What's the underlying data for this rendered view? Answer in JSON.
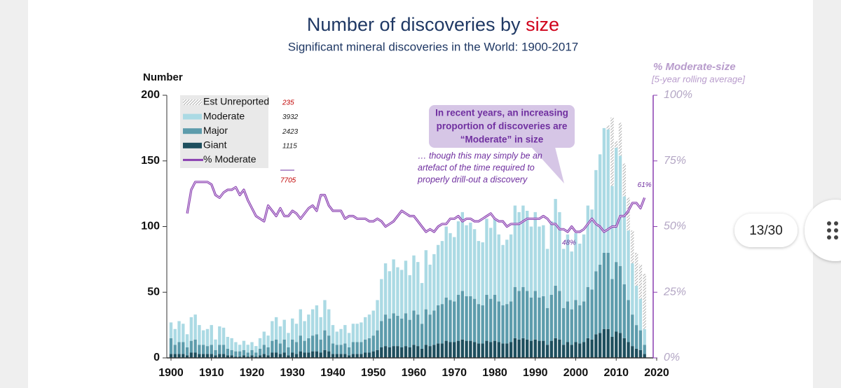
{
  "chart_data": {
    "type": "bar",
    "stacked": true,
    "title": "Number of discoveries by",
    "title_highlight": "size",
    "subtitle": "Significant mineral discoveries in the World: 1900-2017",
    "y_label": "Number",
    "y2_label": "% Moderate-size",
    "y2_sublabel": "[5-year rolling average]",
    "x": [
      1900,
      1901,
      1902,
      1903,
      1904,
      1905,
      1906,
      1907,
      1908,
      1909,
      1910,
      1911,
      1912,
      1913,
      1914,
      1915,
      1916,
      1917,
      1918,
      1919,
      1920,
      1921,
      1922,
      1923,
      1924,
      1925,
      1926,
      1927,
      1928,
      1929,
      1930,
      1931,
      1932,
      1933,
      1934,
      1935,
      1936,
      1937,
      1938,
      1939,
      1940,
      1941,
      1942,
      1943,
      1944,
      1945,
      1946,
      1947,
      1948,
      1949,
      1950,
      1951,
      1952,
      1953,
      1954,
      1955,
      1956,
      1957,
      1958,
      1959,
      1960,
      1961,
      1962,
      1963,
      1964,
      1965,
      1966,
      1967,
      1968,
      1969,
      1970,
      1971,
      1972,
      1973,
      1974,
      1975,
      1976,
      1977,
      1978,
      1979,
      1980,
      1981,
      1982,
      1983,
      1984,
      1985,
      1986,
      1987,
      1988,
      1989,
      1990,
      1991,
      1992,
      1993,
      1994,
      1995,
      1996,
      1997,
      1998,
      1999,
      2000,
      2001,
      2002,
      2003,
      2004,
      2005,
      2006,
      2007,
      2008,
      2009,
      2010,
      2011,
      2012,
      2013,
      2014,
      2015,
      2016,
      2017
    ],
    "series": [
      {
        "name": "Giant",
        "color": "#1e4f5e",
        "total": "1115",
        "values": [
          3,
          3,
          3,
          3,
          2,
          4,
          4,
          3,
          3,
          3,
          3,
          2,
          3,
          3,
          2,
          2,
          1,
          1,
          2,
          1,
          2,
          1,
          2,
          3,
          2,
          4,
          4,
          3,
          4,
          2,
          4,
          3,
          5,
          4,
          4,
          5,
          5,
          4,
          6,
          5,
          3,
          3,
          3,
          3,
          2,
          3,
          3,
          3,
          4,
          4,
          5,
          6,
          8,
          9,
          8,
          9,
          9,
          8,
          9,
          8,
          10,
          9,
          7,
          10,
          9,
          10,
          11,
          11,
          13,
          12,
          12,
          13,
          14,
          13,
          13,
          12,
          11,
          11,
          13,
          12,
          13,
          12,
          11,
          11,
          12,
          15,
          14,
          15,
          14,
          13,
          14,
          13,
          13,
          10,
          13,
          15,
          14,
          10,
          12,
          10,
          12,
          11,
          12,
          15,
          14,
          18,
          19,
          22,
          22,
          16,
          20,
          19,
          15,
          12,
          9,
          7,
          6,
          3
        ]
      },
      {
        "name": "Major",
        "color": "#5d9cac",
        "total": "2423",
        "values": [
          12,
          7,
          9,
          9,
          6,
          9,
          10,
          7,
          7,
          6,
          7,
          4,
          7,
          7,
          5,
          4,
          4,
          4,
          4,
          3,
          4,
          3,
          5,
          7,
          6,
          9,
          10,
          8,
          10,
          6,
          10,
          9,
          12,
          9,
          11,
          12,
          13,
          10,
          15,
          12,
          8,
          7,
          7,
          8,
          6,
          9,
          9,
          9,
          10,
          11,
          12,
          15,
          20,
          24,
          22,
          25,
          23,
          22,
          25,
          21,
          26,
          24,
          19,
          27,
          24,
          26,
          29,
          30,
          33,
          32,
          31,
          35,
          37,
          34,
          34,
          33,
          30,
          29,
          35,
          33,
          35,
          31,
          29,
          30,
          31,
          39,
          37,
          39,
          37,
          33,
          37,
          33,
          34,
          28,
          35,
          40,
          37,
          28,
          31,
          27,
          32,
          29,
          31,
          39,
          38,
          48,
          52,
          58,
          58,
          44,
          53,
          51,
          41,
          32,
          24,
          18,
          15,
          7
        ]
      },
      {
        "name": "Moderate",
        "color": "#abdae4",
        "total": "3932",
        "values": [
          12,
          12,
          16,
          14,
          10,
          18,
          19,
          15,
          11,
          13,
          15,
          8,
          14,
          13,
          9,
          9,
          7,
          5,
          7,
          6,
          6,
          5,
          8,
          10,
          9,
          15,
          17,
          13,
          15,
          11,
          16,
          14,
          20,
          15,
          18,
          20,
          22,
          17,
          23,
          20,
          14,
          10,
          12,
          14,
          11,
          14,
          14,
          15,
          17,
          18,
          19,
          23,
          32,
          39,
          36,
          41,
          37,
          37,
          40,
          34,
          42,
          40,
          31,
          45,
          38,
          43,
          46,
          48,
          54,
          51,
          49,
          56,
          60,
          54,
          56,
          53,
          48,
          48,
          58,
          54,
          58,
          51,
          46,
          49,
          51,
          62,
          60,
          62,
          61,
          54,
          60,
          54,
          54,
          45,
          56,
          66,
          60,
          45,
          51,
          44,
          51,
          47,
          51,
          62,
          61,
          77,
          84,
          95,
          94,
          71,
          87,
          84,
          67,
          53,
          39,
          30,
          24,
          12
        ]
      },
      {
        "name": "Est Unreported",
        "color": "#a0a0a0",
        "hatched": true,
        "total": "235",
        "values": [
          0,
          0,
          0,
          0,
          0,
          0,
          0,
          0,
          0,
          0,
          0,
          0,
          0,
          0,
          0,
          0,
          0,
          0,
          0,
          0,
          0,
          0,
          0,
          0,
          0,
          0,
          0,
          0,
          0,
          0,
          0,
          0,
          0,
          0,
          0,
          0,
          0,
          0,
          0,
          0,
          0,
          0,
          0,
          0,
          0,
          0,
          0,
          0,
          0,
          0,
          0,
          0,
          0,
          0,
          0,
          0,
          0,
          0,
          0,
          0,
          0,
          0,
          0,
          0,
          0,
          0,
          0,
          0,
          0,
          0,
          0,
          0,
          0,
          0,
          0,
          0,
          0,
          0,
          0,
          0,
          0,
          0,
          0,
          0,
          0,
          0,
          0,
          0,
          0,
          0,
          0,
          0,
          0,
          0,
          0,
          0,
          0,
          0,
          0,
          0,
          0,
          0,
          0,
          0,
          0,
          0,
          0,
          0,
          3,
          52,
          5,
          25,
          25,
          25,
          25,
          25,
          26,
          42
        ]
      },
      {
        "name": "% Moderate",
        "color": "#8a3fb0",
        "type": "line",
        "axis": "y2",
        "values": [
          null,
          null,
          null,
          null,
          55,
          64,
          67,
          67,
          67,
          67,
          66,
          62,
          61,
          63,
          64,
          64,
          65,
          62,
          64,
          60,
          57,
          54,
          53,
          52,
          58,
          56,
          54,
          57,
          54,
          54,
          56,
          55,
          53,
          55,
          57,
          58,
          56,
          62,
          62,
          58,
          56,
          56,
          56,
          53,
          54,
          54,
          53,
          53,
          53,
          52,
          52,
          53,
          52,
          50,
          51,
          52,
          54,
          56,
          55,
          54,
          54,
          52,
          50,
          48,
          49,
          48,
          50,
          51,
          51,
          53,
          53,
          54,
          52,
          53,
          53,
          52,
          52,
          53,
          54,
          55,
          53,
          52,
          52,
          50,
          51,
          51,
          51,
          52,
          53,
          53,
          53,
          53,
          54,
          53,
          51,
          51,
          49,
          49,
          48,
          50,
          48,
          48,
          49,
          51,
          53,
          51,
          50,
          48,
          49,
          50,
          50,
          54,
          54,
          56,
          59,
          59,
          57,
          61
        ],
        "value_labels": [
          null,
          null,
          null,
          null,
          null,
          null,
          null,
          null,
          null,
          null,
          null,
          null,
          null,
          null,
          null,
          null,
          null,
          null,
          null,
          null,
          null,
          null,
          null,
          null,
          null,
          null,
          null,
          null,
          null,
          null,
          null,
          null,
          null,
          null,
          null,
          null,
          null,
          null,
          null,
          null,
          null,
          null,
          null,
          null,
          null,
          null,
          null,
          null,
          null,
          null,
          null,
          null,
          null,
          null,
          null,
          null,
          null,
          null,
          null,
          null,
          null,
          null,
          null,
          null,
          null,
          null,
          null,
          null,
          null,
          null,
          null,
          null,
          null,
          null,
          null,
          null,
          null,
          null,
          null,
          null,
          null,
          null,
          null,
          null,
          null,
          null,
          null,
          null,
          null,
          null,
          null,
          null,
          null,
          null,
          null,
          null,
          null,
          null,
          "48%",
          null,
          null,
          null,
          null,
          null,
          null,
          null,
          null,
          null,
          null,
          null,
          null,
          null,
          null,
          null,
          null,
          null,
          null,
          "61%"
        ]
      }
    ],
    "legend_total": "7705",
    "xlim": [
      1900,
      2020
    ],
    "xticks": [
      1900,
      1910,
      1920,
      1930,
      1940,
      1950,
      1960,
      1970,
      1980,
      1990,
      2000,
      2010,
      2020
    ],
    "ylim": [
      0,
      200
    ],
    "yticks": [
      0,
      50,
      100,
      150,
      200
    ],
    "y2lim": [
      0,
      100
    ],
    "y2ticks": [
      {
        "value": 0,
        "label": "0%"
      },
      {
        "value": 25,
        "label": "25%"
      },
      {
        "value": 50,
        "label": "50%"
      },
      {
        "value": 75,
        "label": "75%"
      },
      {
        "value": 100,
        "label": "100%"
      }
    ],
    "callout": [
      "In recent years, an increasing",
      "proportion of discoveries are",
      "“Moderate” in size"
    ],
    "note": [
      "… though this may simply be an",
      "artefact of the time required to",
      "properly drill-out a discovery"
    ]
  },
  "ui": {
    "page_counter": "13/30"
  }
}
